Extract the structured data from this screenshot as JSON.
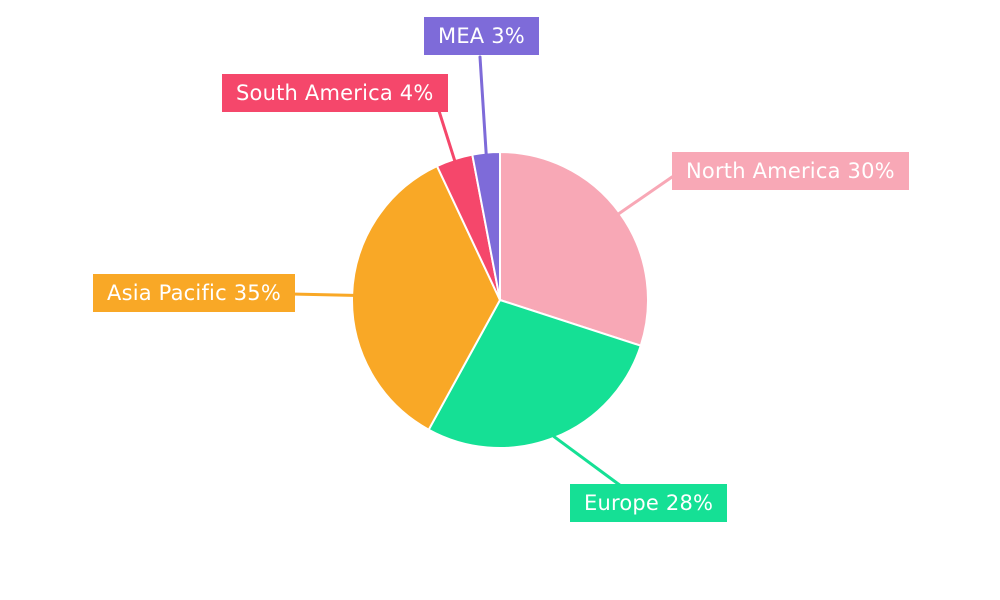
{
  "chart_data": {
    "type": "pie",
    "title": "",
    "labels": [
      "North America",
      "Europe",
      "Asia Pacific",
      "South America",
      "MEA"
    ],
    "values": [
      30,
      28,
      35,
      4,
      3
    ],
    "unit": "%",
    "colors": [
      "#F8A8B6",
      "#15E095",
      "#F9A826",
      "#F5476B",
      "#7E6BD9"
    ],
    "label_texts": [
      "North America 30%",
      "Europe 28%",
      "Asia Pacific 35%",
      "South America 4%",
      "MEA 3%"
    ],
    "start_angle_deg": 0,
    "direction": "clockwise",
    "legend": "none",
    "background": "#FFFFFF",
    "label_style": "external-colored-boxes-with-leader-lines",
    "text_color": "#FFFFFF"
  }
}
